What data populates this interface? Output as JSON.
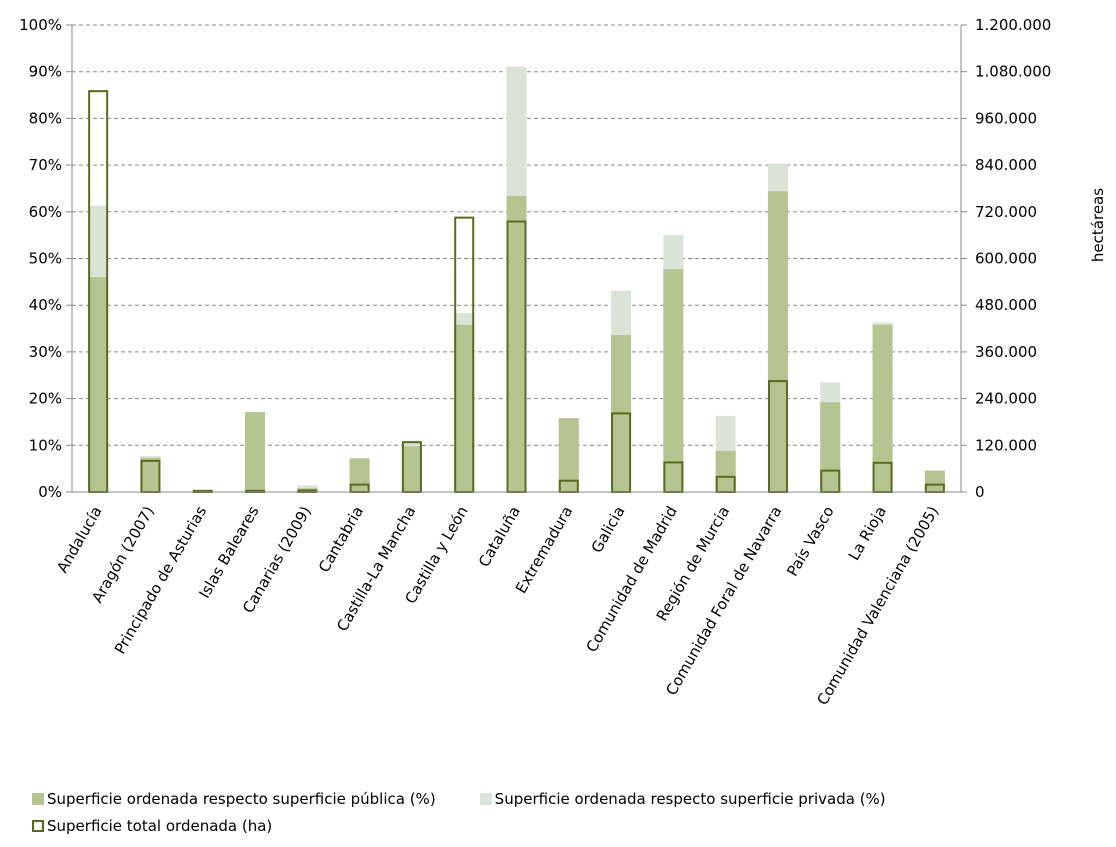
{
  "chart_data": {
    "type": "bar",
    "categories": [
      "Andalucía",
      "Aragón (2007)",
      "Principado de Asturias",
      "Islas Baleares",
      "Canarias (2009)",
      "Cantabria",
      "Castilla-La Mancha",
      "Castilla y León",
      "Cataluña",
      "Extremadura",
      "Galicia",
      "Comunidad de Madrid",
      "Región de Murcia",
      "Comunidad Foral de Navarra",
      "País Vasco",
      "La Rioja",
      "Comunidad Valenciana (2005)"
    ],
    "series": [
      {
        "name": "Superficie ordenada respecto superficie pública (%)",
        "axis": "left",
        "color": "#b5c490",
        "values": [
          46,
          7.3,
          0.2,
          17.1,
          0.8,
          7.2,
          9.8,
          35.8,
          63.4,
          15.8,
          33.6,
          47.7,
          8.8,
          64.4,
          19.2,
          35.8,
          4.6
        ]
      },
      {
        "name": "Superficie ordenada respecto superficie privada (%)",
        "axis": "left",
        "color": "#dbe3d7",
        "values": [
          61.3,
          7.7,
          0.3,
          17.1,
          1.4,
          7.2,
          11.0,
          38.3,
          91.1,
          15.8,
          43.1,
          55.0,
          16.3,
          70.3,
          23.5,
          36.3,
          4.6
        ]
      },
      {
        "name": "Superficie total ordenada (ha)",
        "axis": "right",
        "color": "#5a6b1e",
        "values": [
          1030000,
          80000,
          3000,
          3000,
          4000,
          19000,
          128000,
          705000,
          695000,
          29000,
          202000,
          76000,
          39000,
          285000,
          55000,
          75000,
          19000
        ]
      }
    ],
    "y_left": {
      "ticks": [
        "0%",
        "10%",
        "20%",
        "30%",
        "40%",
        "50%",
        "60%",
        "70%",
        "80%",
        "90%",
        "100%"
      ],
      "ylim": [
        0,
        100
      ]
    },
    "y_right": {
      "label": "hectáreas",
      "ticks": [
        "0",
        "120.000",
        "240.000",
        "360.000",
        "480.000",
        "600.000",
        "720.000",
        "840.000",
        "960.000",
        "1.080.000",
        "1.200.000"
      ],
      "ylim": [
        0,
        1200000
      ]
    },
    "grid": true,
    "legend_position": "bottom"
  }
}
